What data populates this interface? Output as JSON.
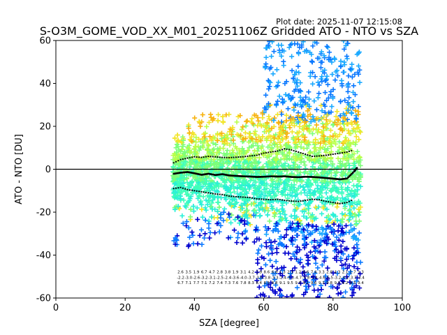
{
  "chart_data": {
    "type": "scatter",
    "plot_date": "Plot date: 2025-11-07 12:15:08",
    "title": "S-O3M_GOME_VOD_XX_M01_20251106Z Gridded ATO - NTO vs SZA",
    "xlabel": "SZA [degree]",
    "ylabel": "ATO - NTO [DU]",
    "xlim": [
      0,
      100
    ],
    "ylim": [
      -60,
      60
    ],
    "xticks": [
      0,
      20,
      40,
      60,
      80,
      100
    ],
    "yticks": [
      -60,
      -40,
      -20,
      0,
      20,
      40,
      60
    ],
    "reference_line_y": 0,
    "colors": {
      "deep_blue": "#0000cd",
      "blue": "#0a78ff",
      "sky": "#1aa9ff",
      "cyan": "#29f0d8",
      "aqua": "#40ffb8",
      "green": "#7dff7a",
      "lime": "#b8ff49",
      "yellow": "#f2e52a",
      "orange": "#f7b20e",
      "black": "#000000"
    },
    "scatter_cloud": {
      "description_sza_range": [
        33.5,
        88.5
      ],
      "envelope": [
        {
          "sza": 34,
          "low": -22,
          "high": 14
        },
        {
          "sza": 38,
          "low": -24,
          "high": 21
        },
        {
          "sza": 42,
          "low": -28,
          "high": 22
        },
        {
          "sza": 46,
          "low": -28,
          "high": 24
        },
        {
          "sza": 50,
          "low": -32,
          "high": 25
        },
        {
          "sza": 54,
          "low": -30,
          "high": 25
        },
        {
          "sza": 58,
          "low": -33,
          "high": 27
        },
        {
          "sza": 62,
          "low": -40,
          "high": 30
        },
        {
          "sza": 66,
          "low": -45,
          "high": 38
        },
        {
          "sza": 70,
          "low": -48,
          "high": 45
        },
        {
          "sza": 74,
          "low": -42,
          "high": 50
        },
        {
          "sza": 78,
          "low": -40,
          "high": 45
        },
        {
          "sza": 82,
          "low": -42,
          "high": 42
        },
        {
          "sza": 86,
          "low": -50,
          "high": 55
        },
        {
          "sza": 88,
          "low": -45,
          "high": 40
        }
      ]
    },
    "series": [
      {
        "name": "mean",
        "x": [
          34,
          36,
          38,
          40,
          42,
          44,
          46,
          48,
          50,
          52,
          54,
          56,
          58,
          60,
          62,
          64,
          66,
          68,
          70,
          72,
          74,
          76,
          78,
          80,
          82,
          84,
          86,
          87
        ],
        "y": [
          -2,
          -1.5,
          -1.2,
          -1.8,
          -2.5,
          -2.0,
          -2.6,
          -2.2,
          -2.8,
          -3.0,
          -3.2,
          -3.3,
          -3.5,
          -3.4,
          -3.2,
          -3.3,
          -3.2,
          -3.5,
          -3.6,
          -3.4,
          -3.5,
          -3.7,
          -4.0,
          -4.3,
          -4.6,
          -4.2,
          -1.0,
          1.0
        ]
      },
      {
        "name": "upper_bound",
        "x": [
          34,
          36,
          38,
          40,
          42,
          44,
          46,
          48,
          50,
          52,
          54,
          56,
          58,
          60,
          62,
          64,
          66,
          68,
          70,
          72,
          74,
          76,
          78,
          80,
          82,
          84,
          86
        ],
        "y": [
          3,
          4.5,
          5.2,
          5.8,
          5.5,
          6.0,
          5.8,
          5.5,
          5.4,
          5.6,
          5.8,
          6.2,
          6.5,
          7.5,
          8.0,
          8.5,
          9.5,
          9.0,
          8.0,
          7.0,
          6.0,
          6.2,
          6.5,
          7.0,
          7.5,
          8.0,
          9.0
        ]
      },
      {
        "name": "lower_bound",
        "x": [
          34,
          36,
          38,
          40,
          42,
          44,
          46,
          48,
          50,
          52,
          54,
          56,
          58,
          60,
          62,
          64,
          66,
          68,
          70,
          72,
          74,
          76,
          78,
          80,
          82,
          84,
          86
        ],
        "y": [
          -9,
          -8.5,
          -9.5,
          -10.0,
          -10.5,
          -11.0,
          -11.5,
          -11.8,
          -12.5,
          -12.8,
          -13.0,
          -13.2,
          -13.8,
          -14.0,
          -14.2,
          -14.0,
          -14.5,
          -14.8,
          -15.0,
          -14.5,
          -14.0,
          -14.2,
          -15.0,
          -15.5,
          -16.0,
          -15.5,
          -14.0
        ]
      }
    ],
    "annotations": {
      "rows_y": [
        -48.5,
        -51.0,
        -53.5
      ],
      "row_values": [
        [
          "2.6",
          "3.5",
          "1.9",
          "6.7",
          "4.7",
          "2.8",
          "3.8",
          "1.9",
          "3.1",
          "4.2",
          "1.9",
          "8.6",
          "6.8",
          "1.3",
          "2.3",
          "1.2",
          "9.6",
          "7.4",
          "3.3",
          "2.8",
          "4.3",
          "2.1",
          "1.7",
          "1.3"
        ],
        [
          "-2.2",
          "-3.0",
          "-2.6",
          "-3.2",
          "-3.1",
          "-2.5",
          "-2.4",
          "-3.6",
          "-4.0",
          "-3.7",
          "-3.6",
          "-3.8",
          "-3.3",
          "-2.4",
          "-3.1",
          "-4.7",
          "-5.8",
          "-3.4",
          "-4.6",
          "-5.5",
          "-3.2",
          "-4.1",
          "-3.7",
          "-3.4"
        ],
        [
          "6.7",
          "7.1",
          "7.7",
          "7.1",
          "7.2",
          "7.4",
          "7.3",
          "7.6",
          "7.8",
          "8.3",
          "8.4",
          "8.5",
          "8.8",
          "9.1",
          "9.5",
          "9.6",
          "9.1",
          "9.6",
          "9.3",
          "9.8",
          "9.0",
          "9.2",
          "9.5",
          "9.4"
        ]
      ]
    }
  }
}
